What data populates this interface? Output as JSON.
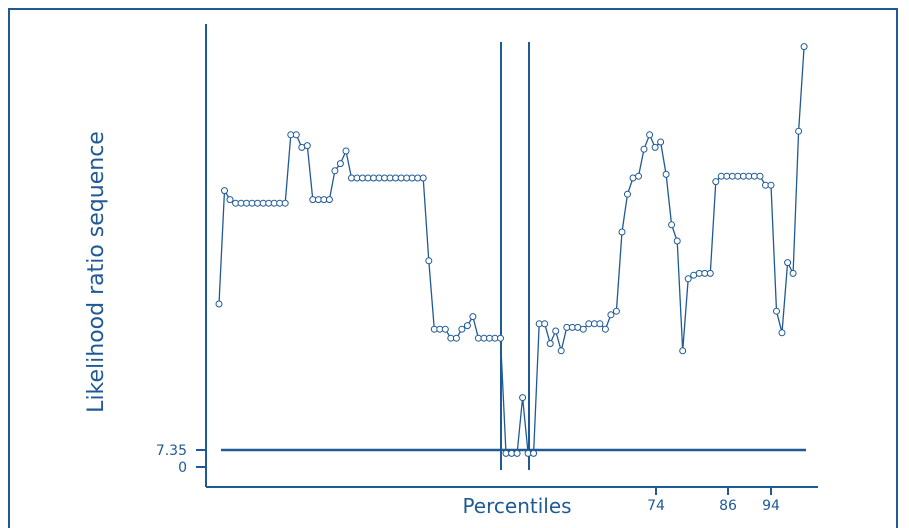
{
  "chart_data": {
    "type": "line",
    "title": "",
    "xlabel": "Percentiles",
    "ylabel": "Likelihood ratio sequence",
    "x_ticks": [
      "74",
      "86",
      "94"
    ],
    "y_ticks": [
      "7.35",
      "0"
    ],
    "threshold": 7.35,
    "change_point_lines": 2,
    "color": "#1f5a96",
    "series": [
      {
        "values": [
          90,
          153,
          148,
          146,
          146,
          146,
          146,
          146,
          146,
          146,
          146,
          146,
          146,
          184,
          184,
          177,
          178,
          148,
          148,
          148,
          148,
          164,
          168,
          175,
          160,
          160,
          160,
          160,
          160,
          160,
          160,
          160,
          160,
          160,
          160,
          160,
          160,
          160,
          114,
          76,
          76,
          76,
          71,
          71,
          76,
          78,
          83,
          71,
          71,
          71,
          71,
          71,
          7,
          7,
          7,
          38,
          7,
          7,
          79,
          79,
          68,
          75,
          64,
          77,
          77,
          77,
          76,
          79,
          79,
          79,
          76,
          84,
          86,
          130,
          151,
          160,
          161,
          176,
          184,
          177,
          180,
          162,
          134,
          125,
          64,
          104,
          106,
          107,
          107,
          107,
          158,
          161,
          161,
          161,
          161,
          161,
          161,
          161,
          161,
          156,
          156,
          86,
          74,
          113,
          107,
          186,
          233
        ]
      }
    ]
  }
}
